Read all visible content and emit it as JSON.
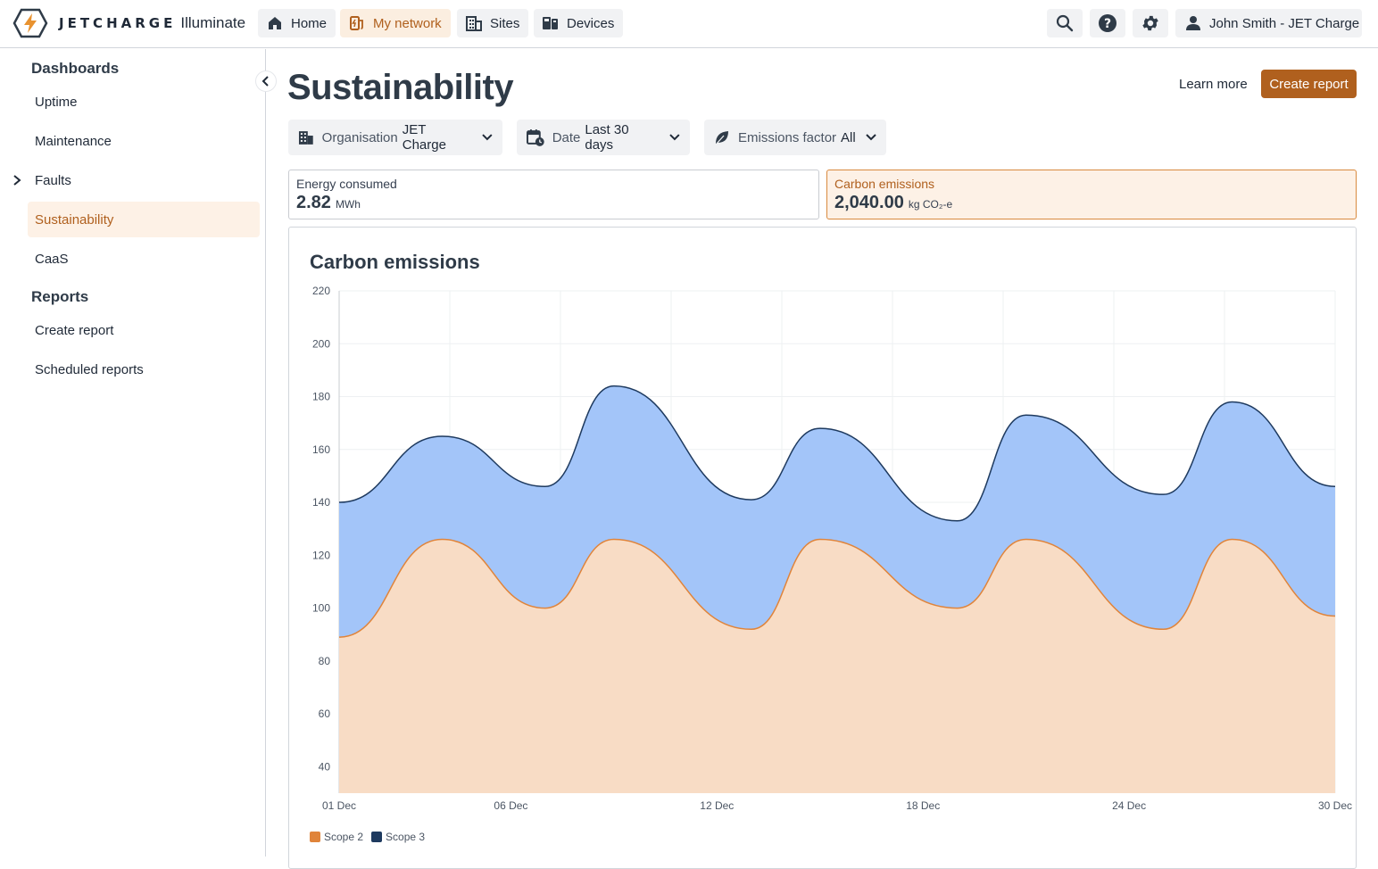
{
  "app": {
    "brand_word": "JETCHARGE",
    "product": "Illuminate"
  },
  "topnav": {
    "items": [
      {
        "label": "Home",
        "icon": "home-icon"
      },
      {
        "label": "My network",
        "icon": "charger-icon",
        "active": true
      },
      {
        "label": "Sites",
        "icon": "building-icon"
      },
      {
        "label": "Devices",
        "icon": "devices-icon"
      }
    ],
    "user_label": "John Smith - JET Charge"
  },
  "sidebar": {
    "dashboards_heading": "Dashboards",
    "dashboards": [
      {
        "label": "Uptime"
      },
      {
        "label": "Maintenance"
      },
      {
        "label": "Faults",
        "expandable": true
      },
      {
        "label": "Sustainability",
        "active": true
      },
      {
        "label": "CaaS"
      }
    ],
    "reports_heading": "Reports",
    "reports": [
      {
        "label": "Create report"
      },
      {
        "label": "Scheduled reports"
      }
    ]
  },
  "page": {
    "title": "Sustainability",
    "learn_more": "Learn more",
    "create_report": "Create report"
  },
  "filters": {
    "organisation": {
      "label": "Organisation",
      "value": "JET Charge"
    },
    "date": {
      "label": "Date",
      "value": "Last 30 days"
    },
    "emissions_factor": {
      "label": "Emissions factor",
      "value": "All"
    }
  },
  "stats": {
    "energy": {
      "label": "Energy consumed",
      "value": "2.82",
      "unit": "MWh"
    },
    "carbon": {
      "label": "Carbon emissions",
      "value": "2,040.00",
      "unit": "kg CO₂-e",
      "selected": true
    }
  },
  "colors": {
    "accent": "#b0601e",
    "scope2_fill": "#f8dcc5",
    "scope2_line": "#e0843a",
    "scope3_fill": "#a3c5f9",
    "scope3_line": "#1e3a5f"
  },
  "chart_data": {
    "type": "area",
    "title": "Carbon emissions",
    "stacked": false,
    "ylim": [
      30,
      220
    ],
    "yticks": [
      40,
      60,
      80,
      100,
      120,
      140,
      160,
      180,
      200,
      220
    ],
    "xlim": [
      1,
      30
    ],
    "xtick_days": [
      1,
      6,
      12,
      18,
      24,
      30
    ],
    "xtick_labels": [
      "01 Dec",
      "06 Dec",
      "12 Dec",
      "18 Dec",
      "24 Dec",
      "30 Dec"
    ],
    "x": [
      1,
      4,
      7,
      9,
      13,
      15,
      19,
      21,
      25,
      27,
      30
    ],
    "grid": true,
    "legend_position": "bottom-left",
    "series": [
      {
        "name": "Scope 2",
        "color": "#e0843a",
        "fill": "#f8dcc5",
        "values": [
          89,
          126,
          100,
          126,
          92,
          126,
          100,
          126,
          92,
          126,
          97
        ]
      },
      {
        "name": "Scope 3",
        "color": "#1e3a5f",
        "fill": "#a3c5f9",
        "values": [
          140,
          165,
          146,
          184,
          141,
          168,
          133,
          173,
          143,
          178,
          146
        ]
      }
    ]
  }
}
